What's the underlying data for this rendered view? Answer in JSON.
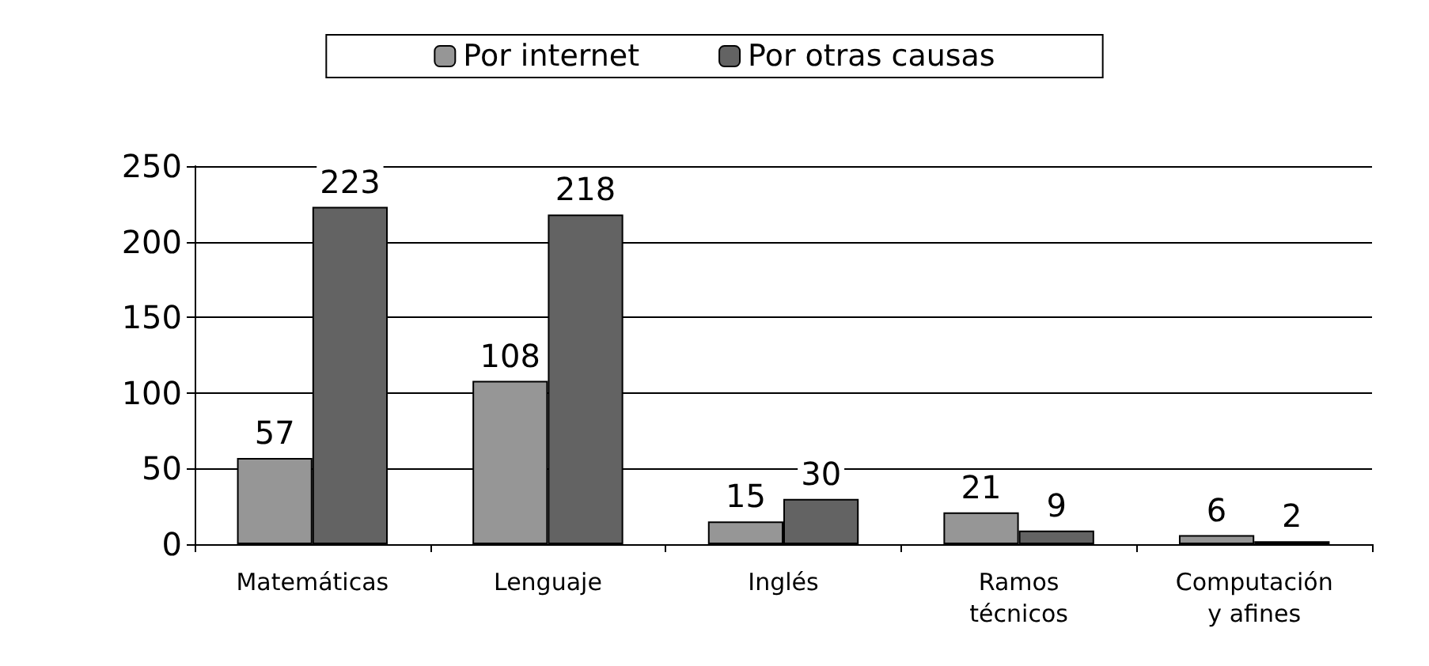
{
  "chart_data": {
    "type": "bar",
    "categories": [
      "Matemáticas",
      "Lenguaje",
      "Inglés",
      "Ramos\ntécnicos",
      "Computación\ny afines"
    ],
    "series": [
      {
        "name": "Por internet",
        "color": "#969696",
        "values": [
          57,
          108,
          15,
          21,
          6
        ]
      },
      {
        "name": "Por otras causas",
        "color": "#636363",
        "values": [
          223,
          218,
          30,
          9,
          2
        ]
      }
    ],
    "ylim": [
      0,
      250
    ],
    "yticks": [
      0,
      50,
      100,
      150,
      200,
      250
    ],
    "grid": "y",
    "legend": "top",
    "data_labels": true
  }
}
